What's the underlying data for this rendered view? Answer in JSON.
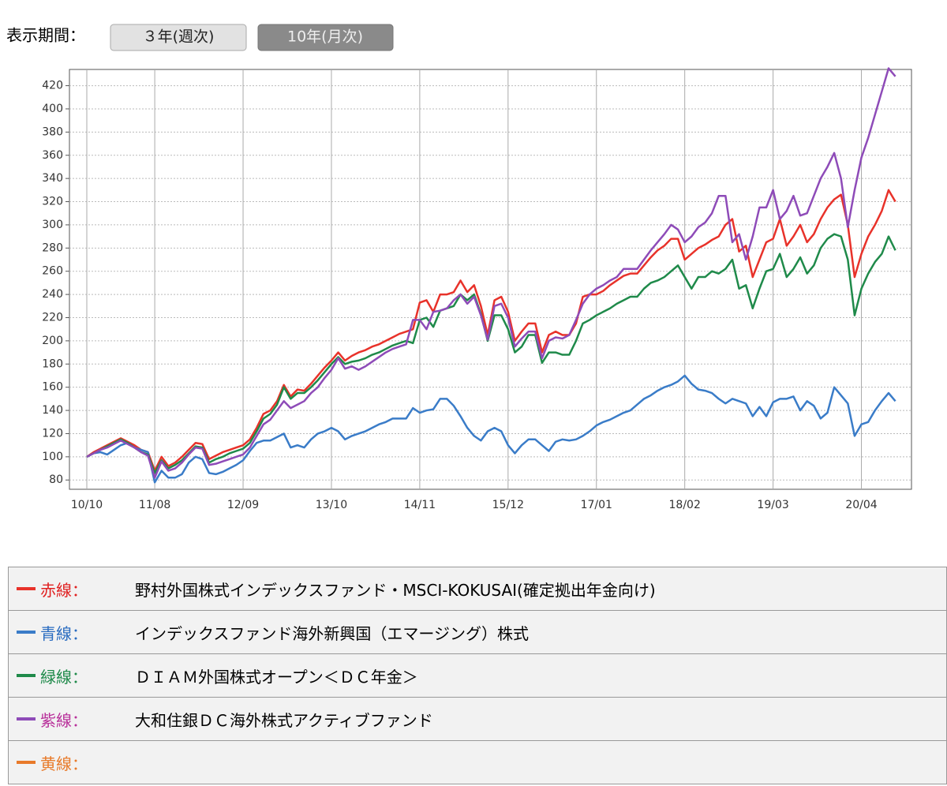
{
  "controls": {
    "label": "表示期間：",
    "buttons": [
      "３年(週次)",
      "10年(月次)"
    ]
  },
  "chart_data": {
    "type": "line",
    "categories": [
      "10/10",
      null,
      null,
      null,
      null,
      null,
      null,
      null,
      null,
      null,
      "11/08",
      null,
      null,
      null,
      null,
      null,
      null,
      null,
      null,
      null,
      null,
      null,
      null,
      "12/09",
      null,
      null,
      null,
      null,
      null,
      null,
      null,
      null,
      null,
      null,
      null,
      null,
      "13/10",
      null,
      null,
      null,
      null,
      null,
      null,
      null,
      null,
      null,
      null,
      null,
      null,
      "14/11",
      null,
      null,
      null,
      null,
      null,
      null,
      null,
      null,
      null,
      null,
      null,
      null,
      "15/12",
      null,
      null,
      null,
      null,
      null,
      null,
      null,
      null,
      null,
      null,
      null,
      null,
      "17/01",
      null,
      null,
      null,
      null,
      null,
      null,
      null,
      null,
      null,
      null,
      null,
      null,
      "18/02",
      null,
      null,
      null,
      null,
      null,
      null,
      null,
      null,
      null,
      null,
      null,
      null,
      "19/03",
      null,
      null,
      null,
      null,
      null,
      null,
      null,
      null,
      null,
      null,
      null,
      null,
      "20/04",
      null,
      null,
      null,
      null,
      null
    ],
    "series": [
      {
        "label": "赤線：",
        "name": "野村外国株式インデックスファンド・MSCI-KOKUSAI(確定拠出年金向け)",
        "color": "#e8322a",
        "label_color": "#e02020",
        "values": [
          100,
          104,
          107,
          110,
          113,
          116,
          113,
          110,
          106,
          104,
          88,
          100,
          92,
          95,
          100,
          106,
          112,
          111,
          98,
          101,
          104,
          106,
          108,
          110,
          115,
          125,
          137,
          140,
          148,
          162,
          152,
          158,
          157,
          163,
          170,
          177,
          183,
          190,
          183,
          187,
          190,
          192,
          195,
          197,
          200,
          203,
          206,
          208,
          210,
          233,
          235,
          225,
          240,
          240,
          242,
          252,
          242,
          248,
          230,
          205,
          235,
          238,
          225,
          200,
          208,
          215,
          215,
          190,
          205,
          208,
          205,
          205,
          215,
          238,
          240,
          240,
          243,
          248,
          252,
          256,
          258,
          258,
          265,
          272,
          278,
          282,
          288,
          288,
          270,
          275,
          280,
          283,
          287,
          290,
          300,
          305,
          277,
          282,
          255,
          270,
          285,
          288,
          305,
          282,
          290,
          300,
          285,
          292,
          305,
          315,
          322,
          326,
          300,
          255,
          275,
          290,
          300,
          312,
          330,
          320
        ]
      },
      {
        "label": "青線：",
        "name": "インデックスファンド海外新興国（エマージング）株式",
        "color": "#3a7cc8",
        "label_color": "#2a6cc0",
        "values": [
          100,
          103,
          104,
          102,
          106,
          110,
          112,
          108,
          106,
          104,
          78,
          88,
          82,
          82,
          85,
          95,
          100,
          98,
          86,
          85,
          87,
          90,
          93,
          97,
          105,
          112,
          114,
          114,
          117,
          120,
          108,
          110,
          108,
          115,
          120,
          122,
          125,
          122,
          115,
          118,
          120,
          122,
          125,
          128,
          130,
          133,
          133,
          133,
          142,
          138,
          140,
          141,
          150,
          150,
          144,
          135,
          125,
          118,
          114,
          122,
          125,
          122,
          110,
          103,
          110,
          115,
          115,
          110,
          105,
          113,
          115,
          114,
          115,
          118,
          122,
          127,
          130,
          132,
          135,
          138,
          140,
          145,
          150,
          153,
          157,
          160,
          162,
          165,
          170,
          163,
          158,
          157,
          155,
          150,
          146,
          150,
          148,
          146,
          135,
          143,
          135,
          147,
          150,
          150,
          152,
          140,
          148,
          144,
          133,
          138,
          160,
          153,
          146,
          118,
          128,
          130,
          140,
          148,
          155,
          148
        ]
      },
      {
        "label": "緑線：",
        "name": "ＤＩＡＭ外国株式オープン＜ＤＣ年金＞",
        "color": "#1f8a4a",
        "label_color": "#1f8a4a",
        "values": [
          100,
          103,
          106,
          109,
          112,
          115,
          112,
          108,
          104,
          102,
          86,
          97,
          90,
          93,
          97,
          103,
          109,
          108,
          95,
          98,
          100,
          103,
          105,
          107,
          112,
          122,
          133,
          137,
          145,
          160,
          150,
          155,
          155,
          160,
          166,
          173,
          180,
          186,
          180,
          182,
          183,
          185,
          188,
          190,
          193,
          196,
          198,
          200,
          198,
          218,
          220,
          212,
          226,
          228,
          230,
          240,
          235,
          240,
          223,
          200,
          222,
          222,
          210,
          190,
          195,
          205,
          205,
          181,
          190,
          190,
          188,
          188,
          200,
          215,
          218,
          222,
          225,
          228,
          232,
          235,
          238,
          238,
          245,
          250,
          252,
          255,
          260,
          265,
          255,
          245,
          255,
          255,
          260,
          258,
          262,
          270,
          245,
          248,
          228,
          245,
          260,
          262,
          275,
          255,
          262,
          272,
          258,
          265,
          280,
          288,
          292,
          290,
          270,
          222,
          245,
          258,
          268,
          275,
          290,
          278
        ]
      },
      {
        "label": "紫線：",
        "name": "大和住銀ＤＣ海外株式アクティブファンド",
        "color": "#8e4bb8",
        "label_color": "#b8309a",
        "values": [
          100,
          103,
          106,
          108,
          111,
          114,
          111,
          108,
          104,
          101,
          82,
          96,
          88,
          90,
          95,
          102,
          108,
          107,
          93,
          94,
          96,
          98,
          100,
          102,
          108,
          118,
          128,
          132,
          140,
          148,
          142,
          145,
          148,
          155,
          160,
          168,
          175,
          185,
          176,
          178,
          175,
          178,
          182,
          186,
          190,
          193,
          195,
          197,
          218,
          218,
          210,
          225,
          226,
          228,
          235,
          240,
          232,
          238,
          222,
          201,
          230,
          232,
          220,
          195,
          202,
          208,
          208,
          185,
          200,
          203,
          202,
          205,
          218,
          232,
          240,
          245,
          248,
          252,
          255,
          262,
          262,
          262,
          270,
          278,
          285,
          292,
          300,
          296,
          285,
          290,
          298,
          302,
          310,
          325,
          325,
          285,
          292,
          270,
          290,
          315,
          315,
          330,
          305,
          312,
          325,
          308,
          310,
          325,
          340,
          350,
          362,
          340,
          298,
          330,
          358,
          375,
          395,
          415,
          435,
          428
        ]
      }
    ],
    "legend_extra": {
      "label": "黄線：",
      "color": "#e87a2a"
    },
    "ylim": [
      72,
      434
    ],
    "yticks": [
      80,
      100,
      120,
      140,
      160,
      180,
      200,
      220,
      240,
      260,
      280,
      300,
      320,
      340,
      360,
      380,
      400,
      420
    ],
    "grid": true
  }
}
